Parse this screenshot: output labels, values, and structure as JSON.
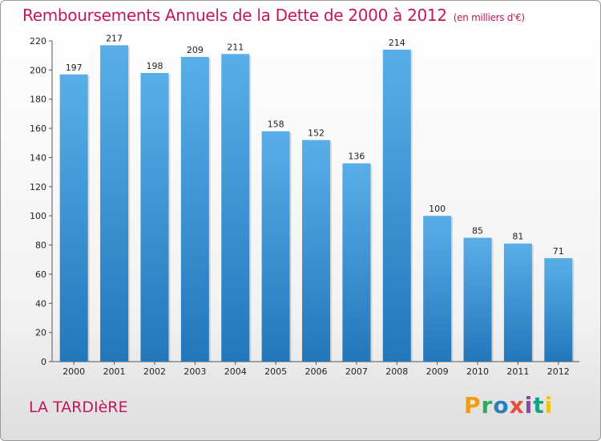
{
  "title": "Remboursements Annuels de la Dette de 2000 à 2012",
  "unit_note": "(en milliers d'€)",
  "location": "LA TARDIèRE",
  "logo_text": "Proxiti",
  "colors": {
    "title": "#c2185b",
    "bar_light": "#5aaee8",
    "bar_dark": "#2277bb"
  },
  "chart_data": {
    "type": "bar",
    "title": "Remboursements Annuels de la Dette de 2000 à 2012",
    "categories": [
      "2000",
      "2001",
      "2002",
      "2003",
      "2004",
      "2005",
      "2006",
      "2007",
      "2008",
      "2009",
      "2010",
      "2011",
      "2012"
    ],
    "values": [
      197,
      217,
      198,
      209,
      211,
      158,
      152,
      136,
      214,
      100,
      85,
      81,
      71
    ],
    "ylim": [
      0,
      220
    ],
    "yticks": [
      0,
      20,
      40,
      60,
      80,
      100,
      120,
      140,
      160,
      180,
      200,
      220
    ],
    "grid": false,
    "xlabel": "",
    "ylabel": ""
  }
}
